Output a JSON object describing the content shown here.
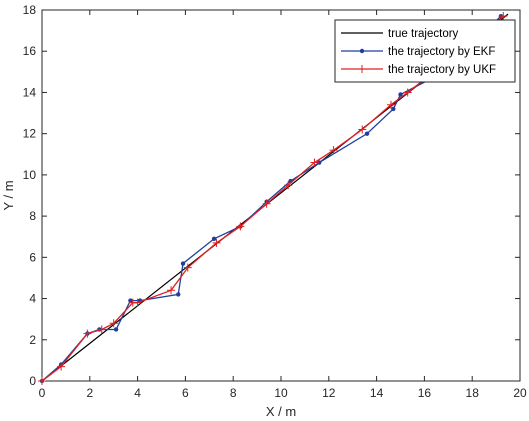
{
  "chart_data": {
    "type": "line",
    "title": "",
    "xlabel": "X / m",
    "ylabel": "Y / m",
    "xlim": [
      0,
      20
    ],
    "ylim": [
      0,
      18
    ],
    "xticks": [
      "0",
      "2",
      "4",
      "6",
      "8",
      "10",
      "12",
      "14",
      "16",
      "18",
      "20"
    ],
    "yticks": [
      "0",
      "2",
      "4",
      "6",
      "8",
      "10",
      "12",
      "14",
      "16",
      "18"
    ],
    "grid": false,
    "legend_position": "top-right",
    "series": [
      {
        "name": "true trajectory",
        "color": "#000000",
        "marker": "none",
        "points": [
          [
            0,
            0
          ],
          [
            19.5,
            17.8
          ]
        ]
      },
      {
        "name": "the trajectory by EKF",
        "color": "#1f3f9e",
        "marker": "dot",
        "points": [
          [
            0,
            0
          ],
          [
            0.8,
            0.8
          ],
          [
            1.9,
            2.3
          ],
          [
            2.4,
            2.5
          ],
          [
            3.1,
            2.5
          ],
          [
            3.7,
            3.9
          ],
          [
            4.1,
            3.9
          ],
          [
            5.7,
            4.2
          ],
          [
            5.9,
            5.7
          ],
          [
            7.2,
            6.9
          ],
          [
            8.3,
            7.5
          ],
          [
            9.4,
            8.7
          ],
          [
            10.4,
            9.7
          ],
          [
            11.6,
            10.6
          ],
          [
            13.6,
            12.0
          ],
          [
            14.7,
            13.2
          ],
          [
            15.0,
            13.9
          ],
          [
            16.5,
            14.8
          ],
          [
            17.5,
            15.8
          ],
          [
            19.2,
            17.7
          ]
        ]
      },
      {
        "name": "the trajectory by UKF",
        "color": "#e02020",
        "marker": "plus",
        "points": [
          [
            0,
            0
          ],
          [
            0.8,
            0.7
          ],
          [
            1.9,
            2.3
          ],
          [
            2.5,
            2.5
          ],
          [
            3.0,
            2.8
          ],
          [
            3.8,
            3.8
          ],
          [
            4.0,
            3.8
          ],
          [
            5.4,
            4.4
          ],
          [
            6.1,
            5.5
          ],
          [
            7.3,
            6.7
          ],
          [
            8.3,
            7.5
          ],
          [
            9.4,
            8.6
          ],
          [
            10.3,
            9.5
          ],
          [
            11.4,
            10.6
          ],
          [
            12.2,
            11.2
          ],
          [
            13.4,
            12.2
          ],
          [
            14.6,
            13.4
          ],
          [
            15.3,
            14.0
          ],
          [
            16.3,
            14.9
          ],
          [
            17.3,
            15.8
          ],
          [
            19.3,
            17.7
          ]
        ]
      }
    ]
  }
}
